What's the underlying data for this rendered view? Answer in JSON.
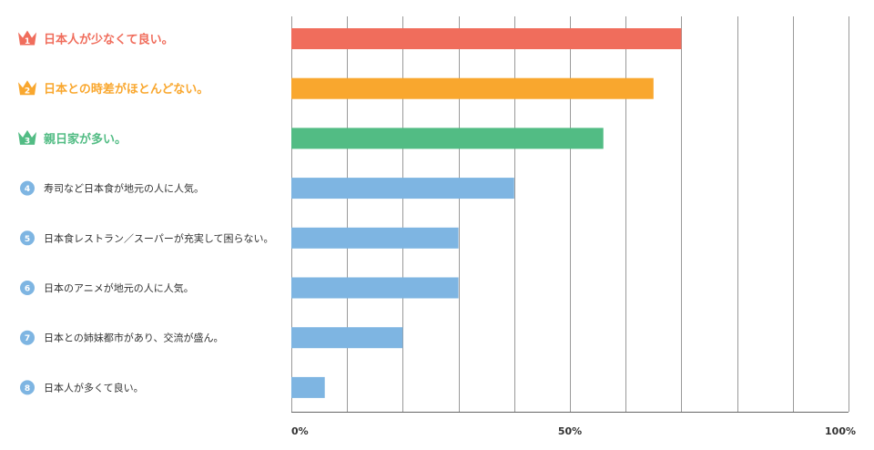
{
  "chart_data": {
    "type": "bar",
    "orientation": "horizontal",
    "categories": [
      "日本人が少なくて良い。",
      "日本との時差がほとんどない。",
      "親日家が多い。",
      "寿司など日本食が地元の人に人気。",
      "日本食レストラン／スーパーが充実して困らない。",
      "日本のアニメが地元の人に人気。",
      "日本との姉妹都市があり、交流が盛ん。",
      "日本人が多くて良い。"
    ],
    "ranks": [
      "1",
      "2",
      "3",
      "4",
      "5",
      "6",
      "7",
      "8"
    ],
    "values": [
      70,
      65,
      56,
      40,
      30,
      30,
      20,
      6
    ],
    "xlim": [
      0,
      100
    ],
    "x_ticks": [
      {
        "value": 0,
        "label": "0%"
      },
      {
        "value": 50,
        "label": "50%"
      },
      {
        "value": 100,
        "label": "100%"
      }
    ],
    "grid": true,
    "gridline_values": [
      0,
      10,
      20,
      30,
      40,
      50,
      60,
      70,
      80,
      90,
      100
    ],
    "colors": {
      "rank1": "#f06d5c",
      "rank2": "#f9a72e",
      "rank3": "#52bc84",
      "default": "#7eb5e2",
      "grid": "#999999"
    },
    "title": "",
    "xlabel": "",
    "ylabel": ""
  }
}
